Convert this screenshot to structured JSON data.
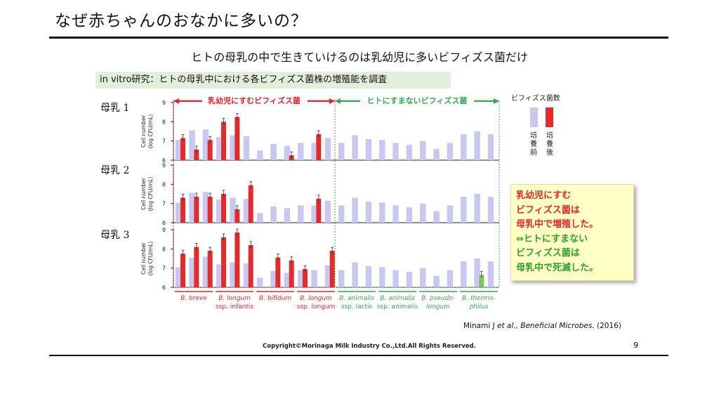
{
  "slide": {
    "title": "なぜ赤ちゃんのおなかに多いの？",
    "subtitle": "ヒトの母乳の中で生きていけるのは乳幼児に多いビフィズス菌だけ",
    "study_label": "in vitro研究：ヒトの母乳中における各ビフィズス菌株の増殖能を調査",
    "callout_lines": [
      {
        "text": "乳幼児にすむ",
        "color": "red"
      },
      {
        "text": "ビフィズス菌は",
        "color": "red"
      },
      {
        "text": "母乳中で増殖した。",
        "color": "red"
      },
      {
        "text": "⇔ヒトにすまない",
        "color": "green"
      },
      {
        "text": "ビフィズス菌は",
        "color": "green"
      },
      {
        "text": "母乳中で死滅した。",
        "color": "green"
      }
    ],
    "citation": {
      "authors": "Minami J ",
      "etal": "et al., ",
      "journal": "Beneficial Microbes.",
      "year": " (2016)"
    },
    "copyright": "Copyright©Morinaga Milk Industry Co.,Ltd.All Rights Reserved.",
    "page_number": "9"
  },
  "chart_data": {
    "type": "bar",
    "ylabel_lines": [
      "Cell number",
      "(log CFU/mL)"
    ],
    "ylim": [
      6,
      9
    ],
    "yticks": [
      "6",
      "7",
      "8",
      "9"
    ],
    "colors": {
      "before": "#c8c8f0",
      "after": "#e32b2b",
      "after_green": "#86c060",
      "infant": "#e8232e",
      "nonhuman": "#34a852"
    },
    "group_headers": {
      "infant": "乳幼児にすむビフィズス菌",
      "nonhuman": "ヒトにすまないビフィズス菌"
    },
    "legend": {
      "title": "ビフィズス菌数",
      "before": "培養前",
      "after": "培養後"
    },
    "species": [
      {
        "line1": "B. breve",
        "line2": "",
        "italic_all": true,
        "group": "infant",
        "strains": 3
      },
      {
        "line1": "B. longum",
        "line2": "ssp. infantis",
        "italic_all": false,
        "group": "infant",
        "strains": 3
      },
      {
        "line1": "B. bifidum",
        "line2": "",
        "italic_all": true,
        "group": "infant",
        "strains": 3
      },
      {
        "line1": "B. longum",
        "line2": "ssp. longum",
        "italic_all": false,
        "group": "infant",
        "strains": 3
      },
      {
        "line1": "B. animalis",
        "line2": "ssp. lactis",
        "italic_all": false,
        "group": "nonhuman",
        "strains": 3
      },
      {
        "line1": "B. animalis",
        "line2": "ssp. animalis",
        "italic_all": false,
        "group": "nonhuman",
        "strains": 3
      },
      {
        "line1": "B. pseudo-",
        "line2": "longum",
        "italic_all": true,
        "group": "nonhuman",
        "strains": 3
      },
      {
        "line1": "B. thermo-",
        "line2": "philus",
        "italic_all": true,
        "group": "nonhuman",
        "strains": 3
      }
    ],
    "panels": [
      {
        "label": "母乳 1",
        "before": [
          7.05,
          7.55,
          7.6,
          7.2,
          7.3,
          7.25,
          6.5,
          6.85,
          6.75,
          6.9,
          6.9,
          7.15,
          6.9,
          7.3,
          7.1,
          7.05,
          6.9,
          6.8,
          7.0,
          6.6,
          6.9,
          7.35,
          7.5,
          7.35
        ],
        "after": [
          7.15,
          6.55,
          7.05,
          8.0,
          8.25,
          null,
          null,
          null,
          6.25,
          null,
          7.35,
          null,
          null,
          null,
          null,
          null,
          null,
          null,
          null,
          null,
          null,
          null,
          null,
          null
        ],
        "after_color": [
          "r",
          "r",
          "r",
          "r",
          "r",
          "r",
          "r",
          "r",
          "r",
          "r",
          "r",
          "r",
          "r",
          "r",
          "r",
          "r",
          "r",
          "r",
          "r",
          "r",
          "r",
          "r",
          "r",
          "r"
        ]
      },
      {
        "label": "母乳 2",
        "before": [
          7.05,
          7.55,
          7.6,
          7.2,
          7.3,
          7.25,
          6.5,
          6.85,
          6.75,
          6.9,
          6.9,
          7.15,
          6.9,
          7.3,
          7.1,
          7.05,
          6.9,
          6.8,
          7.0,
          6.6,
          6.9,
          7.35,
          7.5,
          7.35
        ],
        "after": [
          7.3,
          7.35,
          7.35,
          7.5,
          6.7,
          7.95,
          null,
          null,
          null,
          null,
          7.25,
          null,
          null,
          null,
          null,
          null,
          null,
          null,
          null,
          null,
          null,
          null,
          null,
          null
        ],
        "after_color": [
          "r",
          "r",
          "r",
          "r",
          "r",
          "r",
          "r",
          "r",
          "r",
          "r",
          "r",
          "r",
          "r",
          "r",
          "r",
          "r",
          "r",
          "r",
          "r",
          "r",
          "r",
          "r",
          "r",
          "r"
        ]
      },
      {
        "label": "母乳 3",
        "before": [
          7.05,
          7.55,
          7.6,
          7.2,
          7.3,
          7.25,
          6.5,
          6.85,
          6.75,
          6.9,
          6.9,
          7.15,
          6.9,
          7.3,
          7.1,
          7.05,
          6.9,
          6.8,
          7.0,
          6.6,
          6.9,
          7.35,
          7.5,
          7.35
        ],
        "after": [
          7.75,
          8.1,
          7.9,
          8.6,
          8.85,
          8.2,
          null,
          7.55,
          7.4,
          6.95,
          null,
          7.9,
          null,
          null,
          null,
          null,
          null,
          null,
          null,
          null,
          null,
          null,
          6.65,
          null
        ],
        "after_color": [
          "r",
          "r",
          "r",
          "r",
          "r",
          "r",
          "r",
          "r",
          "r",
          "r",
          "r",
          "r",
          "r",
          "r",
          "r",
          "r",
          "r",
          "r",
          "r",
          "r",
          "r",
          "r",
          "g",
          "r"
        ]
      }
    ]
  }
}
